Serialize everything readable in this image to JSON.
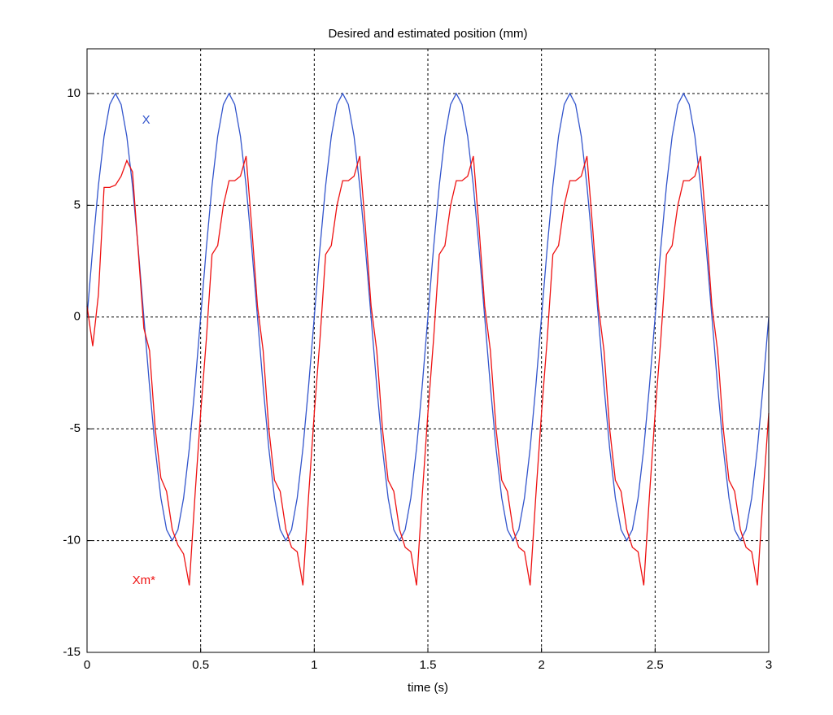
{
  "chart_data": {
    "type": "line",
    "title": "Desired and estimated position (mm)",
    "x_label": "time (s)",
    "x": [
      0,
      0.025,
      0.05,
      0.075,
      0.1,
      0.125,
      0.15,
      0.175,
      0.2,
      0.225,
      0.25,
      0.275,
      0.3,
      0.325,
      0.35,
      0.375,
      0.4,
      0.425,
      0.45,
      0.475,
      0.5,
      0.525,
      0.55,
      0.575,
      0.6,
      0.625,
      0.65,
      0.675,
      0.7,
      0.725,
      0.75,
      0.775,
      0.8,
      0.825,
      0.85,
      0.875,
      0.9,
      0.925,
      0.95,
      0.975,
      1,
      1.025,
      1.05,
      1.075,
      1.1,
      1.125,
      1.15,
      1.175,
      1.2,
      1.225,
      1.25,
      1.275,
      1.3,
      1.325,
      1.35,
      1.375,
      1.4,
      1.425,
      1.45,
      1.475,
      1.5,
      1.525,
      1.55,
      1.575,
      1.6,
      1.625,
      1.65,
      1.675,
      1.7,
      1.725,
      1.75,
      1.775,
      1.8,
      1.825,
      1.85,
      1.875,
      1.9,
      1.925,
      1.95,
      1.975,
      2,
      2.025,
      2.05,
      2.075,
      2.1,
      2.125,
      2.15,
      2.175,
      2.2,
      2.225,
      2.25,
      2.275,
      2.3,
      2.325,
      2.35,
      2.375,
      2.4,
      2.425,
      2.45,
      2.475,
      2.5,
      2.525,
      2.55,
      2.575,
      2.6,
      2.625,
      2.65,
      2.675,
      2.7,
      2.725,
      2.75,
      2.775,
      2.8,
      2.825,
      2.85,
      2.875,
      2.9,
      2.925,
      2.95,
      2.975,
      3
    ],
    "series": [
      {
        "name": "X",
        "color": "#3355cc",
        "values": [
          0,
          3.09,
          5.88,
          8.09,
          9.51,
          10,
          9.51,
          8.09,
          5.88,
          3.09,
          0,
          -3.09,
          -5.88,
          -8.09,
          -9.51,
          -10,
          -9.51,
          -8.09,
          -5.88,
          -3.09,
          0,
          3.09,
          5.88,
          8.09,
          9.51,
          10,
          9.51,
          8.09,
          5.88,
          3.09,
          0,
          -3.09,
          -5.88,
          -8.09,
          -9.51,
          -10,
          -9.51,
          -8.09,
          -5.88,
          -3.09,
          0,
          3.09,
          5.88,
          8.09,
          9.51,
          10,
          9.51,
          8.09,
          5.88,
          3.09,
          0,
          -3.09,
          -5.88,
          -8.09,
          -9.51,
          -10,
          -9.51,
          -8.09,
          -5.88,
          -3.09,
          0,
          3.09,
          5.88,
          8.09,
          9.51,
          10,
          9.51,
          8.09,
          5.88,
          3.09,
          0,
          -3.09,
          -5.88,
          -8.09,
          -9.51,
          -10,
          -9.51,
          -8.09,
          -5.88,
          -3.09,
          0,
          3.09,
          5.88,
          8.09,
          9.51,
          10,
          9.51,
          8.09,
          5.88,
          3.09,
          0,
          -3.09,
          -5.88,
          -8.09,
          -9.51,
          -10,
          -9.51,
          -8.09,
          -5.88,
          -3.09,
          0,
          3.09,
          5.88,
          8.09,
          9.51,
          10,
          9.51,
          8.09,
          5.88,
          3.09,
          0,
          -3.09,
          -5.88,
          -8.09,
          -9.51,
          -10,
          -9.51,
          -8.09,
          -5.88,
          -3.09,
          0
        ]
      },
      {
        "name": "Xm*",
        "color": "#ee1111",
        "values": [
          0.5,
          -1.3,
          1,
          5.8,
          5.8,
          5.9,
          6.3,
          7,
          6.5,
          3,
          -0.5,
          -1.5,
          -5,
          -7.2,
          -7.8,
          -9.5,
          -10.2,
          -10.6,
          -12,
          -8,
          -4.3,
          -1,
          2.8,
          3.2,
          5,
          6.1,
          6.1,
          6.3,
          7.2,
          4,
          0.5,
          -1.5,
          -5,
          -7.3,
          -7.8,
          -9.5,
          -10.3,
          -10.5,
          -12,
          -8,
          -4.3,
          -1,
          2.8,
          3.2,
          5,
          6.1,
          6.1,
          6.3,
          7.2,
          4,
          0.5,
          -1.5,
          -5,
          -7.3,
          -7.8,
          -9.5,
          -10.3,
          -10.5,
          -12,
          -8,
          -4.3,
          -1,
          2.8,
          3.2,
          5,
          6.1,
          6.1,
          6.3,
          7.2,
          4,
          0.5,
          -1.5,
          -5,
          -7.3,
          -7.8,
          -9.5,
          -10.3,
          -10.5,
          -12,
          -8,
          -4.3,
          -1,
          2.8,
          3.2,
          5,
          6.1,
          6.1,
          6.3,
          7.2,
          4,
          0.5,
          -1.5,
          -5,
          -7.3,
          -7.8,
          -9.5,
          -10.3,
          -10.5,
          -12,
          -8,
          -4.3,
          -1,
          2.8,
          3.2,
          5,
          6.1,
          6.1,
          6.3,
          7.2,
          4,
          0.5,
          -1.5,
          -5,
          -7.3,
          -7.8,
          -9.5,
          -10.3,
          -10.5,
          -12,
          -8,
          -4.3
        ]
      }
    ],
    "annotations": [
      {
        "text": "X",
        "x": 0.26,
        "y": 8.8,
        "color": "#3355cc"
      },
      {
        "text": "Xm*",
        "x": 0.25,
        "y": -11.8,
        "color": "#ee1111"
      }
    ],
    "xlim": [
      0,
      3
    ],
    "ylim": [
      -15,
      12
    ],
    "xticks": [
      0,
      0.5,
      1,
      1.5,
      2,
      2.5,
      3
    ],
    "yticks": [
      -15,
      -10,
      -5,
      0,
      5,
      10
    ],
    "grid": true
  }
}
